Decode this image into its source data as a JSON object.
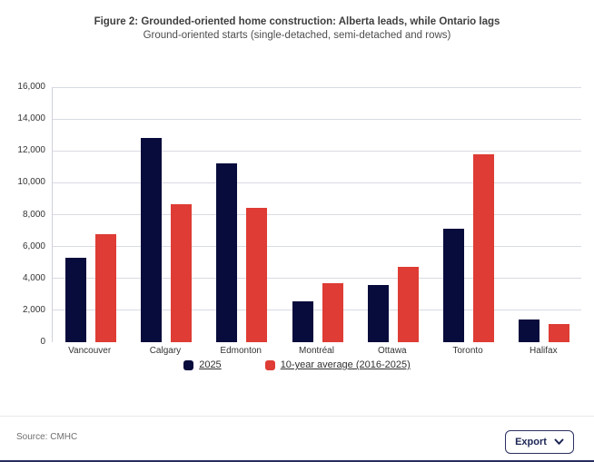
{
  "header": {
    "title": "Figure 2: Grounded-oriented home construction: Alberta leads, while Ontario lags",
    "subtitle": "Ground-oriented starts (single-detached, semi-detached and rows)"
  },
  "chart_data": {
    "type": "bar",
    "title": "Figure 2: Grounded-oriented home construction: Alberta leads, while Ontario lags",
    "subtitle": "Ground-oriented starts (single-detached, semi-detached and rows)",
    "categories": [
      "Vancouver",
      "Calgary",
      "Edmonton",
      "Montréal",
      "Ottawa",
      "Toronto",
      "Halifax"
    ],
    "series": [
      {
        "name": "2025",
        "color": "#080c3c",
        "values": [
          5300,
          12800,
          11200,
          2550,
          3600,
          7100,
          1400
        ]
      },
      {
        "name": "10-year average (2016-2025)",
        "color": "#de3c34",
        "values": [
          6750,
          8650,
          8450,
          3700,
          4750,
          11800,
          1150
        ]
      }
    ],
    "xlabel": "",
    "ylabel": "",
    "ylim": [
      0,
      16000
    ],
    "ytick_step": 2000,
    "ytick_labels": [
      "0",
      "2,000",
      "4,000",
      "6,000",
      "8,000",
      "10,000",
      "12,000",
      "14,000",
      "16,000"
    ],
    "grid": true,
    "legend_position": "bottom"
  },
  "colors": {
    "series_2025": "#080c3c",
    "series_average": "#de3c34",
    "gridline": "#d9dbe4",
    "export_border": "#2a3163"
  },
  "footer": {
    "source": "Source: CMHC",
    "export_label": "Export",
    "export_icon": "chevron-down-icon"
  }
}
